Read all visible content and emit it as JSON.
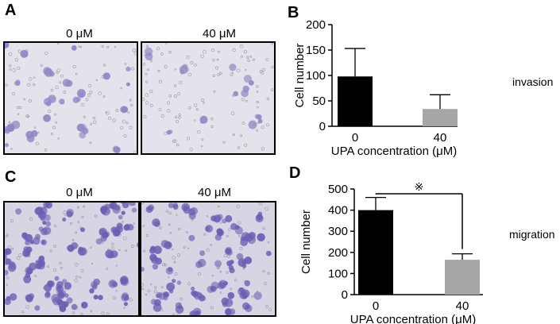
{
  "panels": {
    "A": {
      "letter": "A",
      "labels": [
        "0 μM",
        "40 μM"
      ]
    },
    "B": {
      "letter": "B",
      "side_label": "invasion"
    },
    "C": {
      "letter": "C",
      "labels": [
        "0 μM",
        "40 μM"
      ]
    },
    "D": {
      "letter": "D",
      "side_label": "migration",
      "significance": "※"
    }
  },
  "colors": {
    "bar_0": "#000000",
    "bar_40": "#a6a6a6",
    "stain_light": "#8e86c4",
    "stain_dense": "#6a5fb3",
    "field_light": "#e4e2ea",
    "field_dense": "#d7d4e4"
  },
  "chart_data": [
    {
      "type": "bar",
      "panel": "B",
      "categories": [
        "0",
        "40"
      ],
      "values": [
        98,
        34
      ],
      "errors": [
        55,
        28
      ],
      "ylabel": "Cell number",
      "xlabel": "UPA concentration (μM)",
      "ylim": [
        0,
        200
      ],
      "yticks": [
        0,
        50,
        100,
        150,
        200
      ]
    },
    {
      "type": "bar",
      "panel": "D",
      "categories": [
        "0",
        "40"
      ],
      "values": [
        400,
        165
      ],
      "errors": [
        60,
        28
      ],
      "ylabel": "Cell number",
      "xlabel": "UPA concentration (μM)",
      "ylim": [
        0,
        500
      ],
      "yticks": [
        0,
        100,
        200,
        300,
        400,
        500
      ]
    }
  ]
}
